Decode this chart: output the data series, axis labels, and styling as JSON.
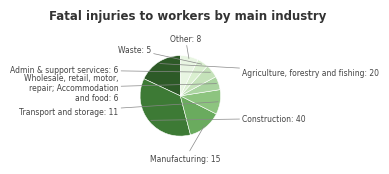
{
  "title": "Fatal injuries to workers by main industry",
  "labels": [
    "Agriculture, forestry and fishing: 20",
    "Construction: 40",
    "Manufacturing: 15",
    "Transport and storage: 11",
    "Wholesale, retail, motor,\nrepair; Accommodation\nand food: 6",
    "Admin & support services: 6",
    "Waste: 5",
    "Other: 8"
  ],
  "values": [
    20,
    40,
    15,
    11,
    6,
    6,
    5,
    8
  ],
  "colors": [
    "#2d5a27",
    "#3d7a35",
    "#6aab5e",
    "#8dc47f",
    "#aad4a0",
    "#c5e2ba",
    "#daefd0",
    "#e8f5e2"
  ],
  "startangle": 90,
  "title_fontsize": 8.5,
  "label_fontsize": 5.5,
  "background_color": "#ffffff"
}
